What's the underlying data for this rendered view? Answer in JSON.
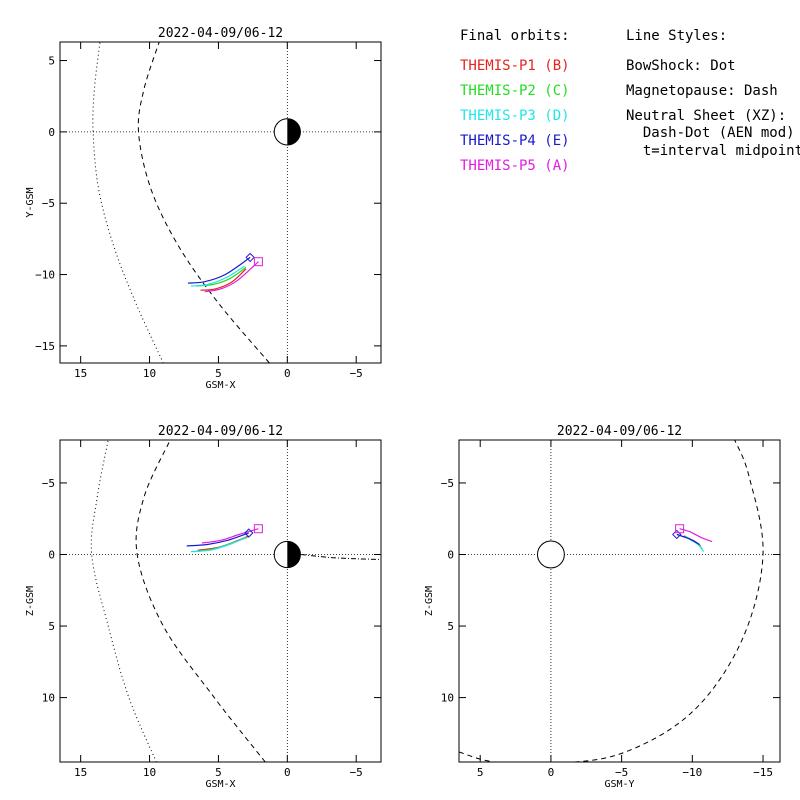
{
  "legend": {
    "orbits_title": "Final orbits:",
    "orbits": [
      {
        "label": "THEMIS-P1 (B)",
        "color": "#e8231e"
      },
      {
        "label": "THEMIS-P2 (C)",
        "color": "#22dd22"
      },
      {
        "label": "THEMIS-P3 (D)",
        "color": "#22e6e6"
      },
      {
        "label": "THEMIS-P4 (E)",
        "color": "#1a1acc"
      },
      {
        "label": "THEMIS-P5 (A)",
        "color": "#e11ee1"
      }
    ],
    "styles_title": "Line Styles:",
    "styles": [
      "BowShock: Dot",
      "Magnetopause: Dash",
      "Neutral Sheet (XZ):",
      "  Dash-Dot (AEN mod)",
      "  t=interval midpoint"
    ]
  },
  "chart_data": [
    {
      "type": "line",
      "title": "2022-04-09/06-12",
      "xlabel": "GSM-X",
      "ylabel": "Y-GSM",
      "xlim": [
        16.5,
        -6.8
      ],
      "ylim": [
        6.3,
        -16.2
      ],
      "xticks": [
        15,
        10,
        5,
        0,
        -5
      ],
      "yticks": [
        -15,
        -10,
        -5,
        0,
        5
      ],
      "earth": {
        "x": 0,
        "y": 0,
        "r": 0.95,
        "night_side": "right"
      },
      "bow_shock": [
        [
          9.0,
          -16.2
        ],
        [
          11.0,
          -12.0
        ],
        [
          12.6,
          -8.0
        ],
        [
          13.7,
          -4.0
        ],
        [
          14.1,
          0.0
        ],
        [
          14.0,
          3.0
        ],
        [
          13.6,
          6.3
        ]
      ],
      "magnetopause": [
        [
          1.3,
          -16.2
        ],
        [
          5.0,
          -12.0
        ],
        [
          7.9,
          -8.0
        ],
        [
          9.9,
          -4.0
        ],
        [
          10.8,
          0.0
        ],
        [
          10.4,
          3.0
        ],
        [
          9.3,
          6.3
        ]
      ],
      "series": [
        {
          "name": "THEMIS-P1 (B)",
          "color": "#e8231e",
          "points": [
            [
              6.3,
              -11.1
            ],
            [
              5.2,
              -11.0
            ],
            [
              4.0,
              -10.5
            ],
            [
              3.0,
              -9.6
            ]
          ]
        },
        {
          "name": "THEMIS-P2 (C)",
          "color": "#22dd22",
          "points": [
            [
              6.6,
              -10.8
            ],
            [
              5.4,
              -10.7
            ],
            [
              4.2,
              -10.3
            ],
            [
              3.0,
              -9.5
            ]
          ]
        },
        {
          "name": "THEMIS-P3 (D)",
          "color": "#22e6e6",
          "points": [
            [
              7.0,
              -10.8
            ],
            [
              5.8,
              -10.7
            ],
            [
              4.4,
              -10.2
            ],
            [
              3.1,
              -9.4
            ]
          ]
        },
        {
          "name": "THEMIS-P4 (E)",
          "color": "#1a1acc",
          "points": [
            [
              7.2,
              -10.6
            ],
            [
              6.0,
              -10.5
            ],
            [
              4.5,
              -10.0
            ],
            [
              2.7,
              -8.8
            ]
          ]
        },
        {
          "name": "THEMIS-P5 (A)",
          "color": "#e11ee1",
          "points": [
            [
              6.0,
              -11.2
            ],
            [
              4.8,
              -11.0
            ],
            [
              3.6,
              -10.4
            ],
            [
              2.1,
              -9.1
            ]
          ]
        }
      ],
      "end_markers": [
        {
          "shape": "diamond",
          "color": "#1a1acc",
          "x": 2.7,
          "y": -8.8
        },
        {
          "shape": "square",
          "color": "#e11ee1",
          "x": 2.1,
          "y": -9.1
        }
      ]
    },
    {
      "type": "line",
      "title": "2022-04-09/06-12",
      "xlabel": "GSM-X",
      "ylabel": "Z-GSM",
      "xlim": [
        16.5,
        -6.8
      ],
      "ylim": [
        -8.0,
        14.5
      ],
      "xticks": [
        15,
        10,
        5,
        0,
        -5
      ],
      "yticks": [
        -5,
        0,
        5,
        10
      ],
      "earth": {
        "x": 0,
        "y": 0,
        "r": 0.95,
        "night_side": "right"
      },
      "bow_shock": [
        [
          9.5,
          14.5
        ],
        [
          11.5,
          10.0
        ],
        [
          13.0,
          5.0
        ],
        [
          14.2,
          0.0
        ],
        [
          13.8,
          -4.0
        ],
        [
          13.0,
          -8.0
        ]
      ],
      "magnetopause": [
        [
          1.6,
          14.5
        ],
        [
          5.3,
          10.0
        ],
        [
          9.0,
          5.0
        ],
        [
          10.9,
          0.0
        ],
        [
          10.4,
          -4.0
        ],
        [
          8.5,
          -8.0
        ]
      ],
      "neutral_sheet": [
        [
          -1.0,
          0.0
        ],
        [
          -3.0,
          0.2
        ],
        [
          -5.0,
          0.3
        ],
        [
          -6.8,
          0.35
        ]
      ],
      "series": [
        {
          "name": "THEMIS-P1 (B)",
          "color": "#e8231e",
          "points": [
            [
              6.5,
              -0.3
            ],
            [
              5.0,
              -0.5
            ],
            [
              3.8,
              -0.9
            ],
            [
              2.8,
              -1.3
            ]
          ]
        },
        {
          "name": "THEMIS-P2 (C)",
          "color": "#22dd22",
          "points": [
            [
              6.8,
              -0.2
            ],
            [
              5.3,
              -0.4
            ],
            [
              4.0,
              -0.8
            ],
            [
              2.9,
              -1.2
            ]
          ]
        },
        {
          "name": "THEMIS-P3 (D)",
          "color": "#22e6e6",
          "points": [
            [
              7.0,
              -0.2
            ],
            [
              5.6,
              -0.3
            ],
            [
              4.2,
              -0.7
            ],
            [
              3.0,
              -1.2
            ]
          ]
        },
        {
          "name": "THEMIS-P4 (E)",
          "color": "#1a1acc",
          "points": [
            [
              7.3,
              -0.6
            ],
            [
              5.8,
              -0.7
            ],
            [
              4.3,
              -1.0
            ],
            [
              2.8,
              -1.5
            ]
          ]
        },
        {
          "name": "THEMIS-P5 (A)",
          "color": "#e11ee1",
          "points": [
            [
              6.2,
              -0.8
            ],
            [
              4.8,
              -1.0
            ],
            [
              3.5,
              -1.4
            ],
            [
              2.1,
              -1.8
            ]
          ]
        }
      ],
      "end_markers": [
        {
          "shape": "diamond",
          "color": "#1a1acc",
          "x": 2.8,
          "y": -1.5
        },
        {
          "shape": "square",
          "color": "#e11ee1",
          "x": 2.1,
          "y": -1.8
        }
      ]
    },
    {
      "type": "line",
      "title": "2022-04-09/06-12",
      "xlabel": "GSM-Y",
      "ylabel": "Z-GSM",
      "xlim": [
        6.5,
        -16.2
      ],
      "ylim": [
        -8.0,
        14.5
      ],
      "xticks": [
        5,
        0,
        -5,
        -10,
        -15
      ],
      "yticks": [
        -5,
        0,
        5,
        10
      ],
      "earth": {
        "x": 0,
        "y": 0,
        "r": 0.95,
        "night_side": "none"
      },
      "magnetopause": [
        [
          6.5,
          13.8
        ],
        [
          4.0,
          14.5
        ],
        [
          0.0,
          14.6
        ],
        [
          -5.0,
          13.9
        ],
        [
          -10.0,
          11.0
        ],
        [
          -13.5,
          6.0
        ],
        [
          -15.0,
          0.0
        ],
        [
          -14.0,
          -5.5
        ],
        [
          -13.0,
          -8.0
        ]
      ],
      "series": [
        {
          "name": "THEMIS-P1 (B)",
          "color": "#e8231e",
          "points": [
            [
              -10.6,
              -0.6
            ],
            [
              -10.2,
              -0.9
            ],
            [
              -9.8,
              -1.1
            ],
            [
              -9.4,
              -1.3
            ]
          ]
        },
        {
          "name": "THEMIS-P2 (C)",
          "color": "#22dd22",
          "points": [
            [
              -10.7,
              -0.4
            ],
            [
              -10.3,
              -0.8
            ],
            [
              -9.9,
              -1.0
            ],
            [
              -9.5,
              -1.3
            ]
          ]
        },
        {
          "name": "THEMIS-P3 (D)",
          "color": "#22e6e6",
          "points": [
            [
              -10.8,
              -0.2
            ],
            [
              -10.4,
              -0.7
            ],
            [
              -9.9,
              -1.0
            ],
            [
              -9.5,
              -1.3
            ]
          ]
        },
        {
          "name": "THEMIS-P4 (E)",
          "color": "#1a1acc",
          "points": [
            [
              -10.5,
              -0.7
            ],
            [
              -10.0,
              -1.0
            ],
            [
              -9.5,
              -1.2
            ],
            [
              -8.9,
              -1.4
            ]
          ]
        },
        {
          "name": "THEMIS-P5 (A)",
          "color": "#e11ee1",
          "points": [
            [
              -11.4,
              -0.9
            ],
            [
              -10.6,
              -1.2
            ],
            [
              -9.8,
              -1.6
            ],
            [
              -9.1,
              -1.8
            ]
          ]
        }
      ],
      "end_markers": [
        {
          "shape": "diamond",
          "color": "#1a1acc",
          "x": -8.9,
          "y": -1.4
        },
        {
          "shape": "square",
          "color": "#e11ee1",
          "x": -9.1,
          "y": -1.8
        }
      ]
    }
  ]
}
